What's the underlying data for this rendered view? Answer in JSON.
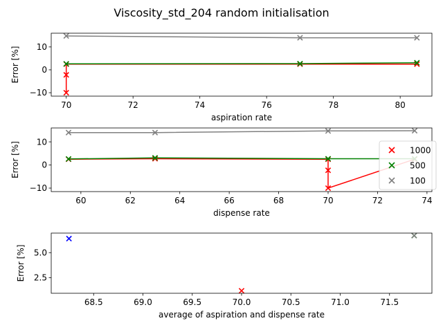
{
  "title": "Viscosity_std_204 random initialisation",
  "colors": {
    "1000": "#ff0000",
    "500": "#008000",
    "100": "#808080",
    "other": "#0000ff"
  },
  "legend": {
    "entries": [
      "1000",
      "500",
      "100"
    ],
    "placement": "right of middle panel"
  },
  "chart_data": [
    {
      "type": "scatter",
      "xlabel": "aspiration rate",
      "ylabel": "Error [%]",
      "xlim": [
        69.55,
        80.95
      ],
      "ylim": [
        -11.5,
        16
      ],
      "xticks": [
        70,
        72,
        74,
        76,
        78,
        80
      ],
      "yticks": [
        -10,
        0,
        10
      ],
      "series": [
        {
          "name": "1000",
          "color": "#ff0000",
          "line": true,
          "points": [
            [
              70,
              -10
            ],
            [
              70,
              -2.2
            ],
            [
              70,
              2.5
            ],
            [
              77,
              2.5
            ],
            [
              80.5,
              2.5
            ]
          ]
        },
        {
          "name": "500",
          "color": "#008000",
          "line": true,
          "points": [
            [
              70,
              2.6
            ],
            [
              77,
              2.7
            ],
            [
              80.5,
              3.1
            ]
          ]
        },
        {
          "name": "100",
          "color": "#808080",
          "line": true,
          "points": [
            [
              70,
              14.8
            ],
            [
              77,
              14.0
            ],
            [
              80.5,
              14.0
            ]
          ]
        }
      ]
    },
    {
      "type": "scatter",
      "xlabel": "dispense rate",
      "ylabel": "Error [%]",
      "xlim": [
        58.8,
        74.2
      ],
      "ylim": [
        -11.5,
        16
      ],
      "xticks": [
        60,
        62,
        64,
        66,
        68,
        70,
        72,
        74
      ],
      "yticks": [
        -10,
        0,
        10
      ],
      "series": [
        {
          "name": "1000",
          "color": "#ff0000",
          "line": true,
          "points": [
            [
              59.5,
              2.5
            ],
            [
              63,
              2.7
            ],
            [
              70,
              2.5
            ],
            [
              70,
              -2.3
            ],
            [
              70,
              -10
            ],
            [
              73.5,
              2.5
            ]
          ]
        },
        {
          "name": "500",
          "color": "#008000",
          "line": true,
          "points": [
            [
              59.5,
              2.6
            ],
            [
              63,
              3.1
            ],
            [
              70,
              2.7
            ],
            [
              73.5,
              2.7
            ]
          ]
        },
        {
          "name": "100",
          "color": "#808080",
          "line": true,
          "points": [
            [
              59.5,
              14.0
            ],
            [
              63,
              14.0
            ],
            [
              70,
              14.7
            ],
            [
              73.5,
              14.8
            ]
          ]
        }
      ]
    },
    {
      "type": "scatter",
      "xlabel": "average of aspiration and dispense rate",
      "ylabel": "Error [%]",
      "xlim": [
        68.07,
        71.93
      ],
      "ylim": [
        0.95,
        6.95
      ],
      "xticks": [
        68.5,
        69.0,
        69.5,
        70.0,
        70.5,
        71.0,
        71.5
      ],
      "xtick_labels": [
        "68.5",
        "69.0",
        "69.5",
        "70.0",
        "70.5",
        "71.0",
        "71.5"
      ],
      "yticks": [
        2.5,
        5.0
      ],
      "ytick_labels": [
        "2.5",
        "5.0"
      ],
      "series": [
        {
          "name": "blue",
          "color": "#0000ff",
          "line": false,
          "points": [
            [
              68.25,
              6.4
            ]
          ]
        },
        {
          "name": "1000",
          "color": "#ff0000",
          "line": false,
          "points": [
            [
              70.0,
              1.2
            ]
          ]
        },
        {
          "name": "500",
          "color": "#008000",
          "line": false,
          "points": [
            [
              71.75,
              6.7
            ]
          ]
        },
        {
          "name": "100",
          "color": "#808080",
          "line": false,
          "points": [
            [
              71.75,
              6.7
            ]
          ]
        }
      ]
    }
  ]
}
